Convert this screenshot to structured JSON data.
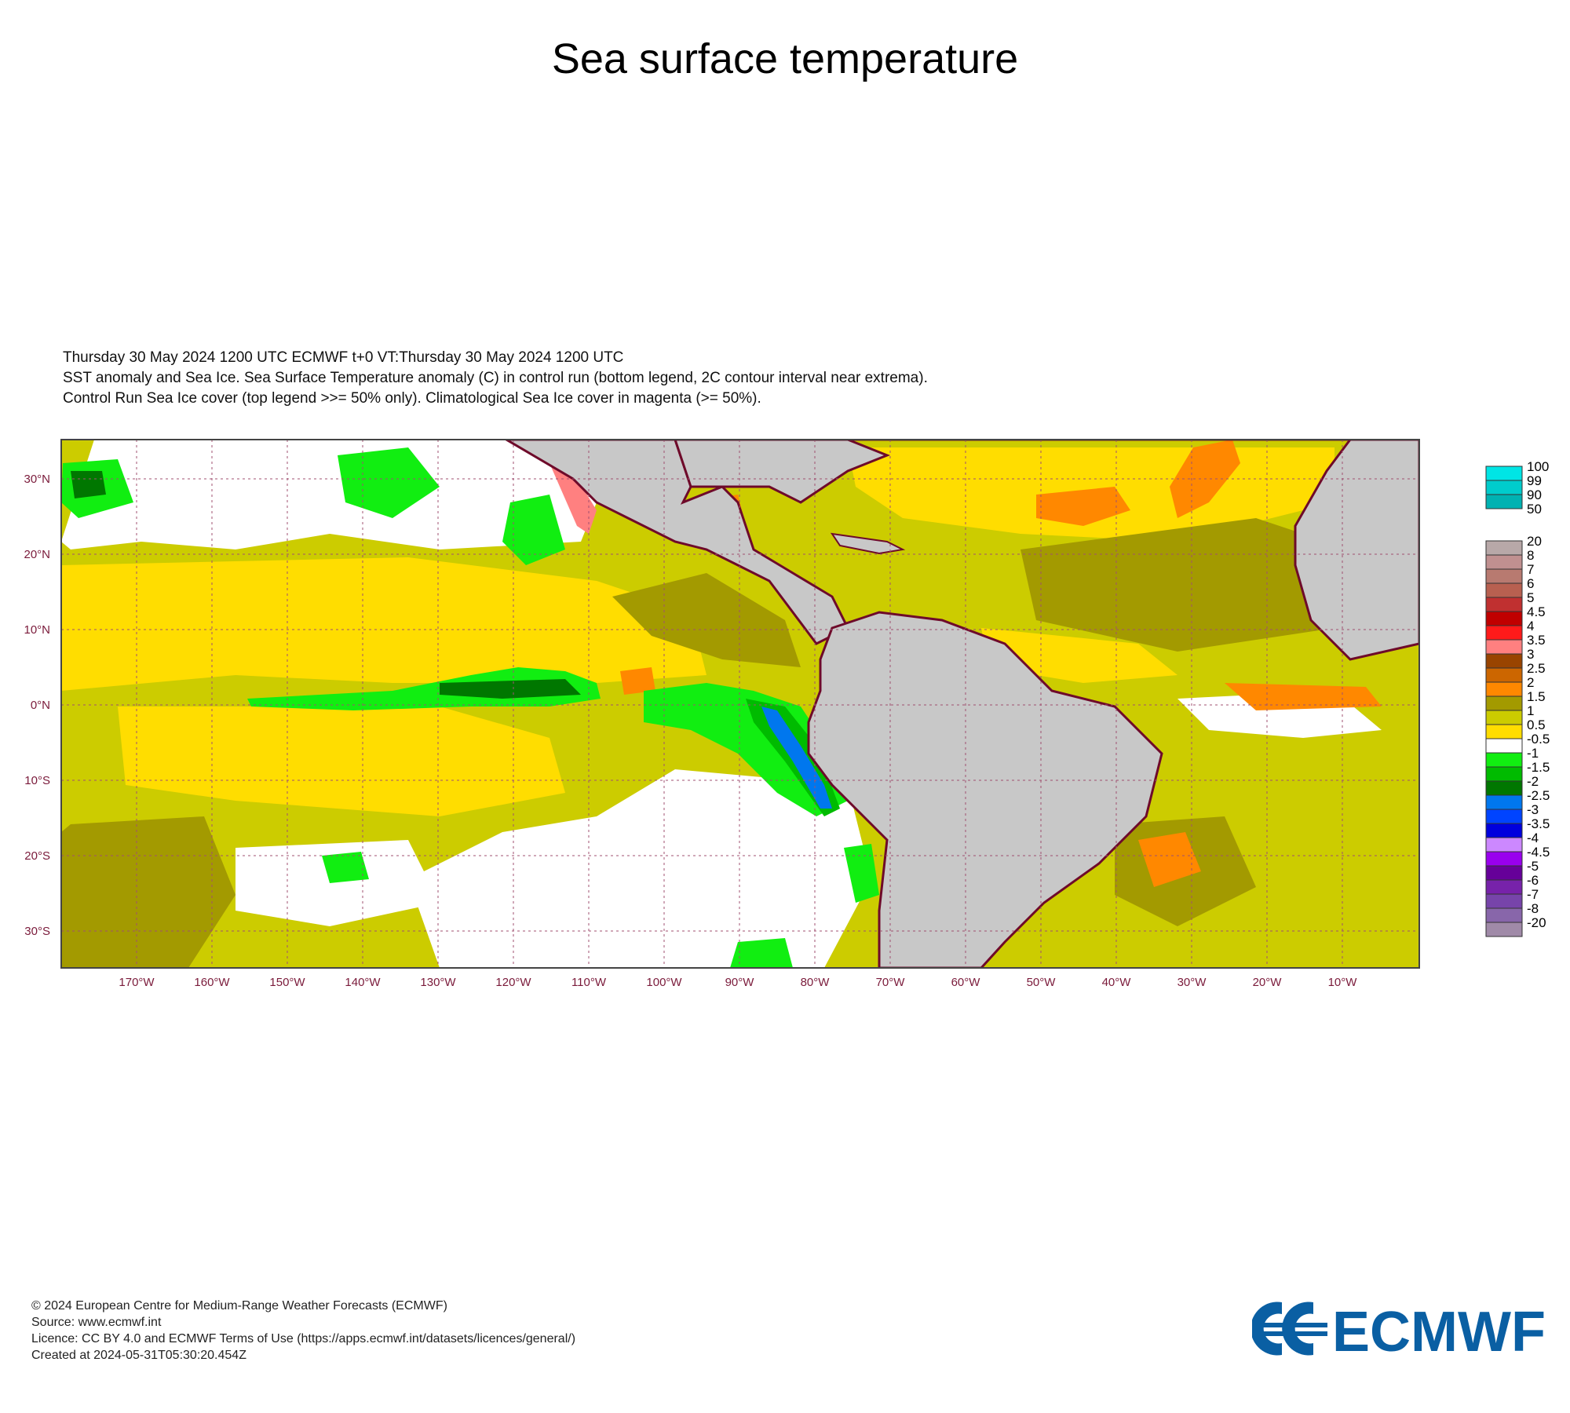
{
  "title": "Sea surface temperature",
  "header_lines": [
    "Thursday 30 May 2024 1200 UTC  ECMWF  t+0  VT:Thursday 30 May 2024 1200 UTC",
    "SST anomaly and Sea Ice. Sea Surface Temperature anomaly (C) in control run (bottom legend, 2C contour interval near extrema).",
    "Control Run Sea Ice cover (top legend >>= 50% only). Climatological Sea Ice cover in magenta (>= 50%)."
  ],
  "map": {
    "lon_range": [
      -180,
      0
    ],
    "lat_range": [
      -35,
      35
    ],
    "lat_ticks": [
      "30°N",
      "20°N",
      "10°N",
      "0°N",
      "10°S",
      "20°S",
      "30°S"
    ],
    "lon_ticks": [
      "170°W",
      "160°W",
      "150°W",
      "140°W",
      "130°W",
      "120°W",
      "110°W",
      "100°W",
      "90°W",
      "80°W",
      "70°W",
      "60°W",
      "50°W",
      "40°W",
      "30°W",
      "20°W",
      "10°W"
    ],
    "land_color": "#c8c8c8",
    "coast_color": "#6e0a2a"
  },
  "ice_legend": [
    {
      "label": "100",
      "color": "#00e5e5"
    },
    {
      "label": "99",
      "color": "#00cccc"
    },
    {
      "label": "90",
      "color": "#00b2b2"
    },
    {
      "label": "50",
      "color": ""
    }
  ],
  "sst_legend": [
    {
      "label": "20",
      "color": "#b8a8a8"
    },
    {
      "label": "8",
      "color": "#c09090"
    },
    {
      "label": "7",
      "color": "#b87a70"
    },
    {
      "label": "6",
      "color": "#b86050"
    },
    {
      "label": "5",
      "color": "#c03030"
    },
    {
      "label": "4.5",
      "color": "#c00000"
    },
    {
      "label": "4",
      "color": "#ff1a1a"
    },
    {
      "label": "3.5",
      "color": "#ff8080"
    },
    {
      "label": "3",
      "color": "#994400"
    },
    {
      "label": "2.5",
      "color": "#cc6600"
    },
    {
      "label": "2",
      "color": "#ff8800"
    },
    {
      "label": "1.5",
      "color": "#a39a00"
    },
    {
      "label": "1",
      "color": "#cccc00"
    },
    {
      "label": "0.5",
      "color": "#ffdd00"
    },
    {
      "label": "-0.5",
      "color": "#ffffff"
    },
    {
      "label": "-1",
      "color": "#11ee11"
    },
    {
      "label": "-1.5",
      "color": "#00bb00"
    },
    {
      "label": "-2",
      "color": "#007700"
    },
    {
      "label": "-2.5",
      "color": "#0077ee"
    },
    {
      "label": "-3",
      "color": "#0044ff"
    },
    {
      "label": "-3.5",
      "color": "#0000dd"
    },
    {
      "label": "-4",
      "color": "#cc88ff"
    },
    {
      "label": "-4.5",
      "color": "#9900ee"
    },
    {
      "label": "-5",
      "color": "#660099"
    },
    {
      "label": "-6",
      "color": "#7722aa"
    },
    {
      "label": "-7",
      "color": "#7744aa"
    },
    {
      "label": "-8",
      "color": "#8866aa"
    },
    {
      "label": "-20",
      "color": "#a08aa8"
    }
  ],
  "footer": [
    "© 2024 European Centre for Medium-Range Weather Forecasts (ECMWF)",
    "Source: www.ecmwf.int",
    "Licence: CC BY 4.0 and ECMWF Terms of Use (https://apps.ecmwf.int/datasets/licences/general/)",
    "Created at 2024-05-31T05:30:20.454Z"
  ],
  "logo": {
    "text": "ECMWF",
    "color": "#0a5fa3"
  }
}
